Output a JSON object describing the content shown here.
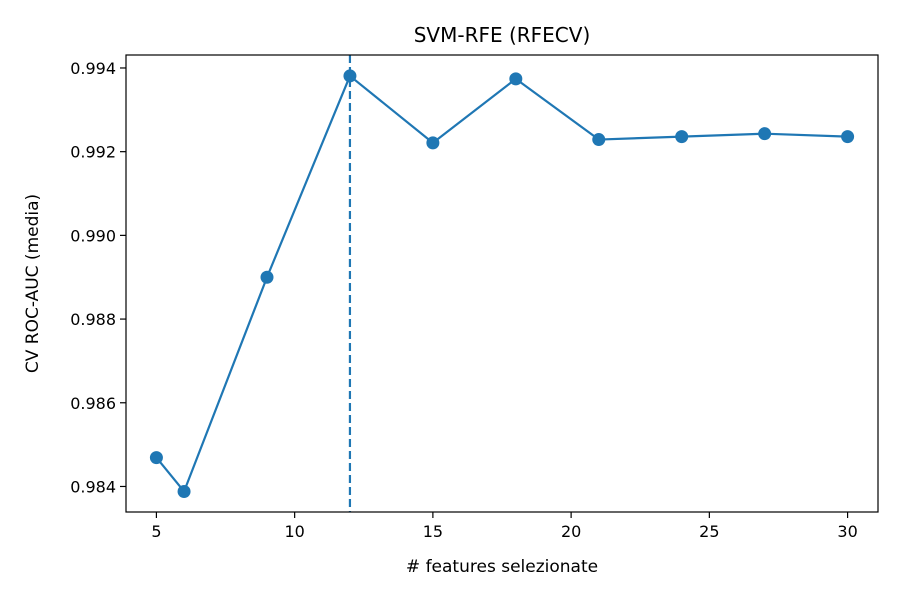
{
  "chart_data": {
    "type": "line",
    "title": "SVM-RFE (RFECV)",
    "xlabel": "# features selezionate",
    "ylabel": "CV ROC-AUC (media)",
    "xlim": [
      3.9,
      31.1
    ],
    "ylim": [
      0.98339,
      0.99431
    ],
    "xticks": [
      5,
      10,
      15,
      20,
      25,
      30
    ],
    "yticks": [
      0.984,
      0.986,
      0.988,
      0.99,
      0.992,
      0.994
    ],
    "ytick_labels": [
      "0.984",
      "0.986",
      "0.988",
      "0.990",
      "0.992",
      "0.994"
    ],
    "grid": false,
    "series": [
      {
        "color": "#1f77b4",
        "marker": "circle",
        "x": [
          5,
          6,
          9,
          12,
          15,
          18,
          21,
          24,
          27,
          30
        ],
        "y": [
          0.98469,
          0.98388,
          0.989,
          0.99381,
          0.99221,
          0.99374,
          0.99229,
          0.99236,
          0.99243,
          0.99236
        ]
      }
    ],
    "vline": {
      "x": 12,
      "style": "dashed",
      "color": "#1f77b4"
    }
  }
}
